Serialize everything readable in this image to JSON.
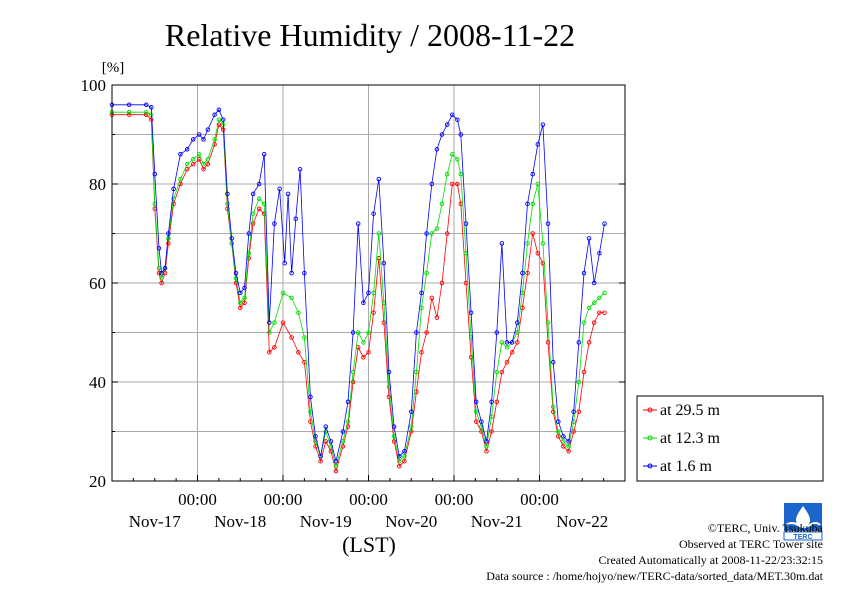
{
  "chart_data": {
    "type": "line",
    "title": "Relative Humidity / 2008-11-22",
    "yunit": "[%]",
    "xlabel": "(LST)",
    "ylim": [
      20,
      100
    ],
    "yticks": [
      20,
      40,
      60,
      80,
      100
    ],
    "xlim": [
      0,
      6
    ],
    "x_time_labels": [
      "00:00",
      "00:00",
      "00:00",
      "00:00",
      "00:00"
    ],
    "x_date_labels": [
      "Nov-17",
      "Nov-18",
      "Nov-19",
      "Nov-20",
      "Nov-21",
      "Nov-22"
    ],
    "grid": true,
    "legend_position": "right",
    "series": [
      {
        "name": "at 29.5 m",
        "color": "#ff0000",
        "points": [
          [
            0.0,
            94
          ],
          [
            0.2,
            94
          ],
          [
            0.4,
            94
          ],
          [
            0.46,
            93
          ],
          [
            0.5,
            75
          ],
          [
            0.55,
            62
          ],
          [
            0.58,
            60
          ],
          [
            0.62,
            62
          ],
          [
            0.66,
            68
          ],
          [
            0.72,
            76
          ],
          [
            0.8,
            80
          ],
          [
            0.88,
            83
          ],
          [
            0.95,
            84
          ],
          [
            1.02,
            85
          ],
          [
            1.07,
            83
          ],
          [
            1.12,
            84
          ],
          [
            1.2,
            88
          ],
          [
            1.25,
            92
          ],
          [
            1.3,
            91
          ],
          [
            1.35,
            75
          ],
          [
            1.4,
            68
          ],
          [
            1.45,
            60
          ],
          [
            1.5,
            55
          ],
          [
            1.55,
            56
          ],
          [
            1.6,
            65
          ],
          [
            1.65,
            72
          ],
          [
            1.72,
            75
          ],
          [
            1.78,
            74
          ],
          [
            1.84,
            46
          ],
          [
            1.9,
            47
          ],
          [
            2.0,
            52
          ],
          [
            2.1,
            49
          ],
          [
            2.18,
            46
          ],
          [
            2.25,
            44
          ],
          [
            2.32,
            32
          ],
          [
            2.38,
            27
          ],
          [
            2.44,
            24
          ],
          [
            2.5,
            28
          ],
          [
            2.56,
            26
          ],
          [
            2.62,
            22
          ],
          [
            2.7,
            27
          ],
          [
            2.76,
            31
          ],
          [
            2.82,
            40
          ],
          [
            2.88,
            47
          ],
          [
            2.94,
            45
          ],
          [
            3.0,
            46
          ],
          [
            3.06,
            54
          ],
          [
            3.12,
            65
          ],
          [
            3.18,
            52
          ],
          [
            3.24,
            37
          ],
          [
            3.3,
            28
          ],
          [
            3.36,
            23
          ],
          [
            3.42,
            24
          ],
          [
            3.5,
            30
          ],
          [
            3.56,
            38
          ],
          [
            3.62,
            46
          ],
          [
            3.68,
            50
          ],
          [
            3.74,
            57
          ],
          [
            3.8,
            53
          ],
          [
            3.86,
            60
          ],
          [
            3.92,
            70
          ],
          [
            3.98,
            80
          ],
          [
            4.04,
            80
          ],
          [
            4.08,
            76
          ],
          [
            4.14,
            60
          ],
          [
            4.2,
            45
          ],
          [
            4.26,
            32
          ],
          [
            4.32,
            30
          ],
          [
            4.38,
            26
          ],
          [
            4.44,
            30
          ],
          [
            4.5,
            36
          ],
          [
            4.56,
            42
          ],
          [
            4.62,
            44
          ],
          [
            4.68,
            46
          ],
          [
            4.74,
            48
          ],
          [
            4.8,
            55
          ],
          [
            4.86,
            62
          ],
          [
            4.92,
            70
          ],
          [
            4.98,
            66
          ],
          [
            5.04,
            64
          ],
          [
            5.1,
            48
          ],
          [
            5.16,
            34
          ],
          [
            5.22,
            29
          ],
          [
            5.28,
            27
          ],
          [
            5.34,
            26
          ],
          [
            5.4,
            30
          ],
          [
            5.46,
            34
          ],
          [
            5.52,
            42
          ],
          [
            5.58,
            48
          ],
          [
            5.64,
            52
          ],
          [
            5.7,
            54
          ],
          [
            5.76,
            54
          ]
        ]
      },
      {
        "name": "at 12.3 m",
        "color": "#00dd00",
        "points": [
          [
            0.0,
            94.5
          ],
          [
            0.2,
            94.5
          ],
          [
            0.4,
            94.5
          ],
          [
            0.46,
            94
          ],
          [
            0.5,
            76
          ],
          [
            0.55,
            63
          ],
          [
            0.58,
            61
          ],
          [
            0.62,
            63
          ],
          [
            0.66,
            69
          ],
          [
            0.72,
            77
          ],
          [
            0.8,
            81
          ],
          [
            0.88,
            84
          ],
          [
            0.95,
            85
          ],
          [
            1.02,
            86
          ],
          [
            1.07,
            84
          ],
          [
            1.12,
            85
          ],
          [
            1.2,
            89
          ],
          [
            1.25,
            93
          ],
          [
            1.3,
            92
          ],
          [
            1.35,
            76
          ],
          [
            1.4,
            68
          ],
          [
            1.45,
            61
          ],
          [
            1.5,
            56
          ],
          [
            1.55,
            57
          ],
          [
            1.6,
            66
          ],
          [
            1.65,
            74
          ],
          [
            1.72,
            77
          ],
          [
            1.78,
            76
          ],
          [
            1.84,
            50
          ],
          [
            1.9,
            52
          ],
          [
            2.0,
            58
          ],
          [
            2.1,
            57
          ],
          [
            2.18,
            54
          ],
          [
            2.25,
            49
          ],
          [
            2.32,
            34
          ],
          [
            2.38,
            28
          ],
          [
            2.44,
            25
          ],
          [
            2.5,
            30
          ],
          [
            2.56,
            27
          ],
          [
            2.62,
            23
          ],
          [
            2.7,
            28
          ],
          [
            2.76,
            32
          ],
          [
            2.82,
            42
          ],
          [
            2.88,
            50
          ],
          [
            2.94,
            48
          ],
          [
            3.0,
            50
          ],
          [
            3.06,
            58
          ],
          [
            3.12,
            70
          ],
          [
            3.18,
            56
          ],
          [
            3.24,
            39
          ],
          [
            3.3,
            29
          ],
          [
            3.36,
            24
          ],
          [
            3.42,
            25
          ],
          [
            3.5,
            31
          ],
          [
            3.56,
            42
          ],
          [
            3.62,
            55
          ],
          [
            3.68,
            62
          ],
          [
            3.74,
            70
          ],
          [
            3.8,
            71
          ],
          [
            3.86,
            76
          ],
          [
            3.92,
            82
          ],
          [
            3.98,
            86
          ],
          [
            4.04,
            85
          ],
          [
            4.08,
            82
          ],
          [
            4.14,
            66
          ],
          [
            4.2,
            49
          ],
          [
            4.26,
            34
          ],
          [
            4.32,
            31
          ],
          [
            4.38,
            27
          ],
          [
            4.44,
            33
          ],
          [
            4.5,
            42
          ],
          [
            4.56,
            48
          ],
          [
            4.62,
            47
          ],
          [
            4.68,
            48
          ],
          [
            4.74,
            50
          ],
          [
            4.8,
            58
          ],
          [
            4.86,
            68
          ],
          [
            4.92,
            76
          ],
          [
            4.98,
            80
          ],
          [
            5.04,
            68
          ],
          [
            5.1,
            52
          ],
          [
            5.16,
            35
          ],
          [
            5.22,
            30
          ],
          [
            5.28,
            28
          ],
          [
            5.34,
            27
          ],
          [
            5.4,
            32
          ],
          [
            5.46,
            40
          ],
          [
            5.52,
            52
          ],
          [
            5.58,
            55
          ],
          [
            5.64,
            56
          ],
          [
            5.7,
            57
          ],
          [
            5.76,
            58
          ]
        ]
      },
      {
        "name": "at 1.6 m",
        "color": "#0000ff",
        "points": [
          [
            0.0,
            96
          ],
          [
            0.2,
            96
          ],
          [
            0.4,
            96
          ],
          [
            0.46,
            95.5
          ],
          [
            0.5,
            82
          ],
          [
            0.55,
            67
          ],
          [
            0.58,
            62
          ],
          [
            0.62,
            63
          ],
          [
            0.66,
            70
          ],
          [
            0.72,
            79
          ],
          [
            0.8,
            86
          ],
          [
            0.88,
            87
          ],
          [
            0.95,
            89
          ],
          [
            1.02,
            90
          ],
          [
            1.07,
            89
          ],
          [
            1.12,
            91
          ],
          [
            1.2,
            94
          ],
          [
            1.25,
            95
          ],
          [
            1.3,
            93
          ],
          [
            1.35,
            78
          ],
          [
            1.4,
            69
          ],
          [
            1.45,
            62
          ],
          [
            1.5,
            58
          ],
          [
            1.55,
            59
          ],
          [
            1.6,
            70
          ],
          [
            1.65,
            78
          ],
          [
            1.72,
            80
          ],
          [
            1.78,
            86
          ],
          [
            1.84,
            52
          ],
          [
            1.9,
            72
          ],
          [
            1.96,
            79
          ],
          [
            2.02,
            64
          ],
          [
            2.06,
            78
          ],
          [
            2.1,
            62
          ],
          [
            2.15,
            73
          ],
          [
            2.2,
            83
          ],
          [
            2.25,
            62
          ],
          [
            2.32,
            37
          ],
          [
            2.38,
            29
          ],
          [
            2.44,
            25
          ],
          [
            2.5,
            31
          ],
          [
            2.56,
            28
          ],
          [
            2.62,
            24
          ],
          [
            2.7,
            30
          ],
          [
            2.76,
            36
          ],
          [
            2.82,
            50
          ],
          [
            2.88,
            72
          ],
          [
            2.94,
            56
          ],
          [
            3.0,
            58
          ],
          [
            3.06,
            74
          ],
          [
            3.12,
            81
          ],
          [
            3.18,
            64
          ],
          [
            3.24,
            42
          ],
          [
            3.3,
            31
          ],
          [
            3.36,
            25
          ],
          [
            3.42,
            26
          ],
          [
            3.5,
            34
          ],
          [
            3.56,
            50
          ],
          [
            3.62,
            58
          ],
          [
            3.68,
            70
          ],
          [
            3.74,
            80
          ],
          [
            3.8,
            87
          ],
          [
            3.86,
            90
          ],
          [
            3.92,
            92
          ],
          [
            3.98,
            94
          ],
          [
            4.04,
            93
          ],
          [
            4.08,
            90
          ],
          [
            4.14,
            72
          ],
          [
            4.2,
            54
          ],
          [
            4.26,
            36
          ],
          [
            4.32,
            32
          ],
          [
            4.38,
            28
          ],
          [
            4.44,
            36
          ],
          [
            4.5,
            50
          ],
          [
            4.56,
            68
          ],
          [
            4.62,
            48
          ],
          [
            4.68,
            48
          ],
          [
            4.74,
            52
          ],
          [
            4.8,
            62
          ],
          [
            4.86,
            76
          ],
          [
            4.92,
            82
          ],
          [
            4.98,
            88
          ],
          [
            5.04,
            92
          ],
          [
            5.1,
            72
          ],
          [
            5.16,
            44
          ],
          [
            5.22,
            32
          ],
          [
            5.28,
            29
          ],
          [
            5.34,
            28
          ],
          [
            5.4,
            34
          ],
          [
            5.46,
            48
          ],
          [
            5.52,
            62
          ],
          [
            5.58,
            69
          ],
          [
            5.64,
            60
          ],
          [
            5.7,
            66
          ],
          [
            5.76,
            72
          ]
        ]
      }
    ],
    "footer_lines": [
      "©TERC, Univ. Tsukuba",
      "Observed at TERC Tower site",
      "Created Automatically at 2008-11-22/23:32:15",
      "Data source : /home/hojyo/new/TERC-data/sorted_data/MET.30m.dat"
    ],
    "logo_text": "TERC"
  }
}
